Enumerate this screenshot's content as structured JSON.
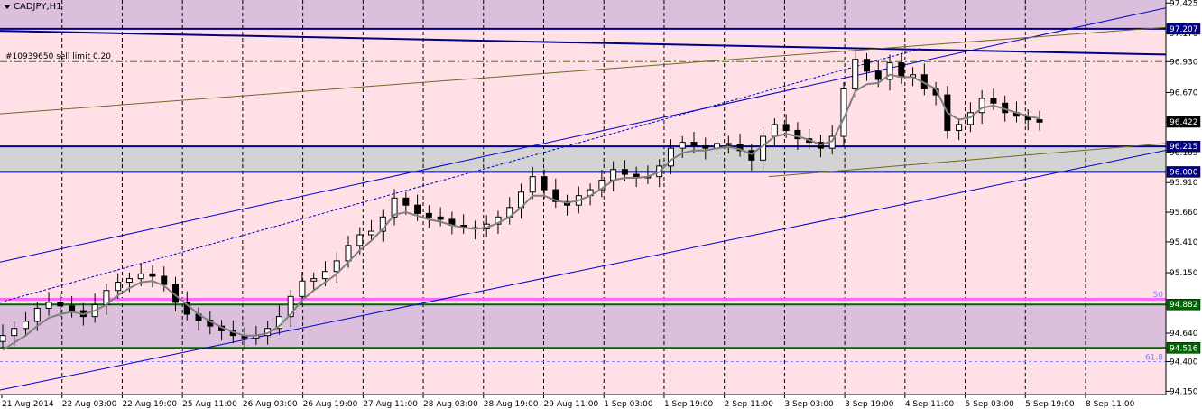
{
  "chart_data": {
    "type": "candlestick",
    "title": "CADJPY,H1",
    "symbol": "CADJPY",
    "timeframe": "H1",
    "price_range": [
      94.13,
      97.45
    ],
    "y_ticks": [
      "97.425",
      "97.170",
      "96.930",
      "96.670",
      "96.422",
      "96.165",
      "95.910",
      "95.660",
      "95.410",
      "95.150",
      "94.900",
      "94.640",
      "94.400",
      "94.150"
    ],
    "x_ticks": [
      "21 Aug 2014",
      "22 Aug 03:00",
      "22 Aug 19:00",
      "25 Aug 11:00",
      "26 Aug 03:00",
      "26 Aug 19:00",
      "27 Aug 11:00",
      "28 Aug 03:00",
      "28 Aug 19:00",
      "29 Aug 11:00",
      "1 Sep 03:00",
      "1 Sep 19:00",
      "2 Sep 11:00",
      "3 Sep 03:00",
      "3 Sep 19:00",
      "4 Sep 11:00",
      "5 Sep 03:00",
      "5 Sep 19:00",
      "8 Sep 11:00"
    ],
    "current_price": "96.422",
    "order_annotation": "#10939650 sell limit 0.20",
    "horizontal_levels": [
      {
        "label": "97.207",
        "price": 97.207,
        "color": "#00008b"
      },
      {
        "label": "96.215",
        "price": 96.215,
        "color": "#00008b"
      },
      {
        "label": "96.000",
        "price": 96.0,
        "color": "#00008b"
      },
      {
        "label": "94.882",
        "price": 94.882,
        "color": "#006400"
      },
      {
        "label": "94.516",
        "price": 94.516,
        "color": "#006400"
      }
    ],
    "sell_limit_price": 96.93,
    "fib_levels": [
      {
        "label": "50",
        "price": 94.93
      },
      {
        "label": "61.8",
        "price": 94.4
      }
    ],
    "zones": [
      {
        "from": 97.207,
        "to": 97.45,
        "color": "#dbbfdd"
      },
      {
        "from": 96.0,
        "to": 96.215,
        "color": "#d3d3d3"
      },
      {
        "from": 94.516,
        "to": 94.882,
        "color": "#dbbfdd"
      }
    ],
    "trendlines": [
      {
        "name": "channel-upper",
        "from": [
          0,
          95.24
        ],
        "to": [
          1332,
          97.45
        ],
        "color": "#0000cc"
      },
      {
        "name": "channel-lower",
        "from": [
          0,
          94.16
        ],
        "to": [
          1332,
          96.245
        ],
        "color": "#0000cc"
      },
      {
        "name": "resistance-desc",
        "from": [
          0,
          97.19
        ],
        "to": [
          1292,
          96.99
        ],
        "color": "#000080"
      },
      {
        "name": "olive-upper",
        "from": [
          0,
          96.49
        ],
        "to": [
          1292,
          97.22
        ],
        "color": "#6b6b2a"
      },
      {
        "name": "olive-lower",
        "from": [
          852,
          95.96
        ],
        "to": [
          1292,
          96.24
        ],
        "color": "#6b6b2a"
      },
      {
        "name": "dotted-channel",
        "from": [
          0,
          94.9
        ],
        "to": [
          1020,
          97.04
        ],
        "color": "#0000cc"
      }
    ],
    "close_series": [
      94.62,
      94.68,
      94.74,
      94.85,
      94.9,
      94.87,
      94.83,
      94.78,
      94.88,
      95.0,
      95.07,
      95.1,
      95.14,
      95.12,
      95.05,
      94.9,
      94.8,
      94.75,
      94.7,
      94.66,
      94.62,
      94.6,
      94.62,
      94.68,
      94.78,
      94.95,
      95.08,
      95.1,
      95.16,
      95.25,
      95.38,
      95.47,
      95.5,
      95.62,
      95.78,
      95.72,
      95.65,
      95.62,
      95.6,
      95.55,
      95.53,
      95.52,
      95.56,
      95.62,
      95.7,
      95.83,
      95.96,
      95.85,
      95.75,
      95.72,
      95.8,
      95.85,
      95.93,
      96.02,
      95.98,
      95.95,
      95.96,
      96.05,
      96.2,
      96.25,
      96.22,
      96.2,
      96.24,
      96.23,
      96.18,
      96.1,
      96.3,
      96.4,
      96.35,
      96.28,
      96.25,
      96.2,
      96.3,
      96.7,
      96.95,
      96.85,
      96.78,
      96.92,
      96.8,
      96.82,
      96.7,
      96.65,
      96.35,
      96.4,
      96.5,
      96.62,
      96.58,
      96.5,
      96.47,
      96.44,
      96.42
    ],
    "ma_series": [
      94.5,
      94.56,
      94.62,
      94.7,
      94.77,
      94.8,
      94.82,
      94.8,
      94.83,
      94.88,
      94.96,
      95.02,
      95.07,
      95.08,
      95.04,
      94.96,
      94.88,
      94.8,
      94.74,
      94.69,
      94.65,
      94.62,
      94.62,
      94.64,
      94.7,
      94.8,
      94.92,
      95.0,
      95.07,
      95.14,
      95.24,
      95.34,
      95.42,
      95.52,
      95.64,
      95.66,
      95.63,
      95.6,
      95.58,
      95.55,
      95.53,
      95.52,
      95.53,
      95.57,
      95.62,
      95.7,
      95.8,
      95.8,
      95.76,
      95.74,
      95.76,
      95.8,
      95.86,
      95.93,
      95.95,
      95.95,
      95.96,
      96.0,
      96.1,
      96.16,
      96.18,
      96.18,
      96.2,
      96.21,
      96.19,
      96.15,
      96.22,
      96.3,
      96.32,
      96.3,
      96.27,
      96.23,
      96.26,
      96.45,
      96.68,
      96.74,
      96.75,
      96.82,
      96.8,
      96.8,
      96.75,
      96.7,
      96.5,
      96.44,
      96.46,
      96.54,
      96.56,
      96.53,
      96.5,
      96.47,
      96.45
    ],
    "grid": "vertical-dashed",
    "legend": "none"
  }
}
